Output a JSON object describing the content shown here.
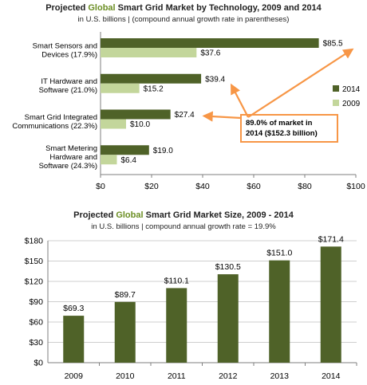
{
  "colors": {
    "series_2014": "#4f6228",
    "series_2009": "#c3d69b",
    "bars_single": "#4f6228",
    "highlight": "#6b8e23",
    "callout": "#f79646"
  },
  "chart_data": [
    {
      "type": "bar",
      "orientation": "horizontal",
      "title": {
        "before": "Projected ",
        "highlight": "Global",
        "after": " Smart Grid Market by Technology, 2009 and 2014"
      },
      "subtitle": "in U.S. billions | (compound annual growth rate in parentheses)",
      "categories": [
        [
          "Smart Sensors and",
          "Devices (17.9%)"
        ],
        [
          "IT Hardware and",
          "Software (21.0%)"
        ],
        [
          "Smart Grid Integrated",
          "Communications (22.3%)"
        ],
        [
          "Smart Metering",
          "Hardware and",
          "Software (24.3%)"
        ]
      ],
      "series": [
        {
          "name": "2014",
          "values": [
            85.5,
            39.4,
            27.4,
            19.0
          ],
          "labels": [
            "$85.5",
            "$39.4",
            "$27.4",
            "$19.0"
          ]
        },
        {
          "name": "2009",
          "values": [
            37.6,
            15.2,
            10.0,
            6.4
          ],
          "labels": [
            "$37.6",
            "$15.2",
            "$10.0",
            "$6.4"
          ]
        }
      ],
      "xlim": [
        0,
        100
      ],
      "xticks": [
        0,
        20,
        40,
        60,
        80,
        100
      ],
      "xtick_labels": [
        "$0",
        "$20",
        "$40",
        "$60",
        "$80",
        "$100"
      ],
      "legend_placement": "right",
      "grid": false,
      "annotation": {
        "lines": [
          "89.0% of market in",
          "2014 ($152.3 billion)"
        ],
        "points_to": [
          "Smart Sensors and Devices",
          "IT Hardware and Software",
          "Smart Grid Integrated Communications"
        ]
      }
    },
    {
      "type": "bar",
      "orientation": "vertical",
      "title": {
        "before": "Projected ",
        "highlight": "Global",
        "after": " Smart Grid Market Size, 2009 - 2014"
      },
      "subtitle": "in U.S. billions | compound annual growth rate = 19.9%",
      "categories": [
        "2009",
        "2010",
        "2011",
        "2012",
        "2013",
        "2014"
      ],
      "values": [
        69.3,
        89.7,
        110.1,
        130.5,
        151.0,
        171.4
      ],
      "labels": [
        "$69.3",
        "$89.7",
        "$110.1",
        "$130.5",
        "$151.0",
        "$171.4"
      ],
      "ylim": [
        0,
        180
      ],
      "yticks": [
        0,
        30,
        60,
        90,
        120,
        150,
        180
      ],
      "ytick_labels": [
        "$0",
        "$30",
        "$60",
        "$90",
        "$120",
        "$150",
        "$180"
      ],
      "grid": true
    }
  ]
}
